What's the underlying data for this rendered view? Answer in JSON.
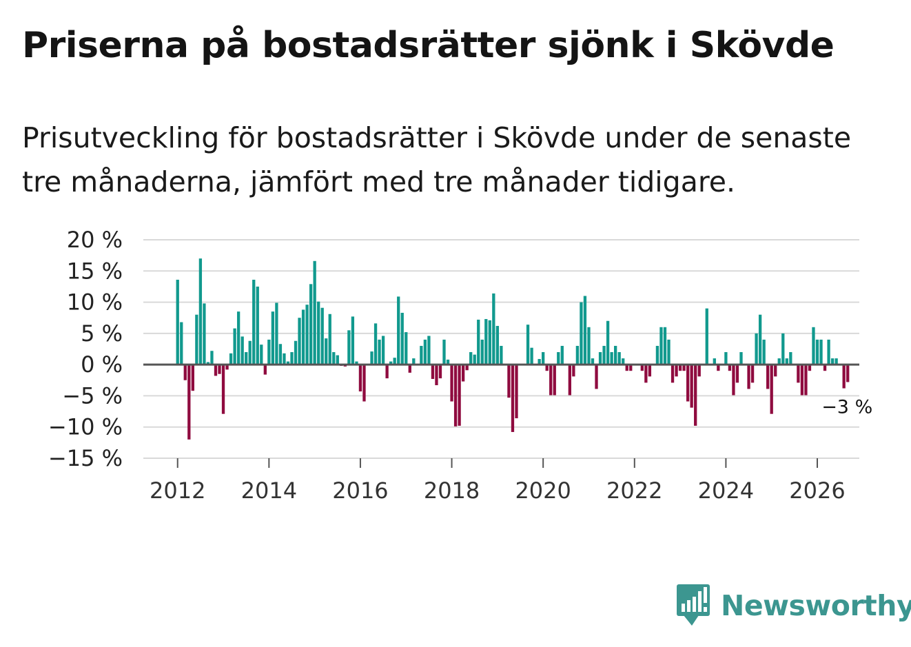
{
  "title": "Priserna på bostadsrätter sjönk i Skövde",
  "subtitle": "Prisutveckling för bostadsrätter i Skövde under de senaste tre månaderna, jämfört med tre månader tidigare.",
  "brand": {
    "name": "Newsworthy",
    "color": "#3c9690",
    "icon": "newsworthy-logo-icon"
  },
  "colors": {
    "positive": "#11998e",
    "negative": "#8f0b3f",
    "grid": "#d9d9d9",
    "zero": "#555555"
  },
  "chart_data": {
    "type": "bar",
    "title": "Priserna på bostadsrätter sjönk i Skövde",
    "xlabel": "",
    "ylabel": "",
    "unit": "%",
    "ylim": [
      -15,
      20
    ],
    "yticks": [
      {
        "value": 20,
        "label": "20 %"
      },
      {
        "value": 15,
        "label": "15 %"
      },
      {
        "value": 10,
        "label": "10 %"
      },
      {
        "value": 5,
        "label": "5 %"
      },
      {
        "value": 0,
        "label": "0 %"
      },
      {
        "value": -5,
        "label": "−5 %"
      },
      {
        "value": -10,
        "label": "−10 %"
      },
      {
        "value": -15,
        "label": "−15 %"
      }
    ],
    "xlim": [
      2011.25,
      2026.92
    ],
    "xticks": [
      {
        "value": 2012,
        "label": "2012"
      },
      {
        "value": 2014,
        "label": "2014"
      },
      {
        "value": 2016,
        "label": "2016"
      },
      {
        "value": 2018,
        "label": "2018"
      },
      {
        "value": 2020,
        "label": "2020"
      },
      {
        "value": 2022,
        "label": "2022"
      },
      {
        "value": 2024,
        "label": "2024"
      },
      {
        "value": 2026,
        "label": "2026"
      }
    ],
    "start": {
      "year": 2012,
      "month": 1
    },
    "frequency": "monthly",
    "values": [
      13.6,
      6.8,
      -2.5,
      -12.0,
      -4.2,
      8.0,
      17.0,
      9.8,
      0.4,
      2.2,
      -1.8,
      -1.5,
      -7.9,
      -0.8,
      1.8,
      5.8,
      8.5,
      4.5,
      2.0,
      3.8,
      13.6,
      12.5,
      3.2,
      -1.6,
      4.0,
      8.5,
      9.9,
      3.3,
      1.8,
      0.5,
      2.0,
      3.8,
      7.5,
      8.8,
      9.6,
      12.9,
      16.6,
      10.1,
      9.1,
      4.2,
      8.1,
      2.0,
      1.5,
      -0.2,
      -0.3,
      5.5,
      7.7,
      0.5,
      -4.3,
      -5.9,
      0.1,
      2.1,
      6.6,
      4.0,
      4.6,
      -2.2,
      0.5,
      1.1,
      10.9,
      8.3,
      5.2,
      -1.3,
      1.0,
      0.1,
      3.0,
      4.0,
      4.6,
      -2.3,
      -3.3,
      -2.2,
      4.0,
      0.8,
      -5.9,
      -9.9,
      -9.8,
      -2.7,
      -0.9,
      2.0,
      1.6,
      7.2,
      4.0,
      7.3,
      7.1,
      11.4,
      6.2,
      3.0,
      -0.1,
      -5.3,
      -10.8,
      -8.6,
      0.1,
      0.1,
      6.4,
      2.7,
      -0.1,
      0.9,
      2.0,
      -1.0,
      -4.9,
      -4.9,
      2.0,
      3.0,
      0.1,
      -4.9,
      -1.9,
      3.0,
      10.0,
      11.0,
      6.0,
      1.0,
      -3.9,
      2.0,
      3.0,
      7.0,
      2.0,
      3.0,
      2.0,
      1.0,
      -1.0,
      -1.0,
      0.0,
      0.0,
      -1.0,
      -2.9,
      -1.9,
      0.0,
      3.0,
      6.0,
      6.0,
      4.0,
      -2.9,
      -1.9,
      -1.0,
      -1.0,
      -5.9,
      -6.9,
      -9.8,
      -1.9,
      0.0,
      9.0,
      0.0,
      1.0,
      -1.0,
      0.1,
      2.0,
      -1.0,
      -4.9,
      -2.9,
      2.0,
      0.0,
      -3.9,
      -2.9,
      5.0,
      8.0,
      4.0,
      -3.9,
      -7.9,
      -1.9,
      1.0,
      5.0,
      1.0,
      2.0,
      0.0,
      -2.9,
      -4.9,
      -4.9,
      -1.0,
      6.0,
      4.0,
      4.0,
      -1.0,
      4.0,
      1.0,
      1.0,
      0.0,
      -3.8,
      -2.8
    ],
    "annotations": [
      {
        "label": "−3 %",
        "value": -3,
        "anchor": "last-bar"
      }
    ]
  }
}
